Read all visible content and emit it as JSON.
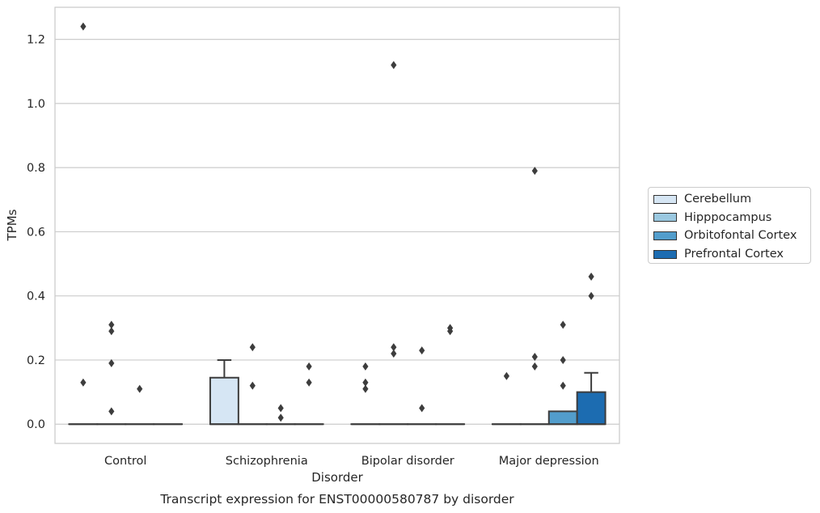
{
  "chart_data": {
    "type": "box",
    "title": "Transcript expression for ENST00000580787 by disorder",
    "xlabel": "Disorder",
    "ylabel": "TPMs",
    "ylim": [
      -0.06,
      1.3
    ],
    "yticks": [
      "0.0",
      "0.2",
      "0.4",
      "0.6",
      "0.8",
      "1.0",
      "1.2"
    ],
    "categories": [
      "Control",
      "Schizophrenia",
      "Bipolar disorder",
      "Major depression"
    ],
    "grid": "horizontal",
    "legend_position": "right",
    "series": [
      {
        "name": "Cerebellum",
        "color": "#d6e6f4",
        "boxes": [
          {
            "q1": 0,
            "median": 0,
            "q3": 0,
            "whisker_low": 0,
            "whisker_high": 0,
            "outliers": [
              1.24,
              0.13
            ]
          },
          {
            "q1": 0,
            "median": 0,
            "q3": 0.145,
            "whisker_low": 0,
            "whisker_high": 0.2,
            "outliers": []
          },
          {
            "q1": 0,
            "median": 0,
            "q3": 0,
            "whisker_low": 0,
            "whisker_high": 0,
            "outliers": [
              0.18,
              0.13,
              0.11
            ]
          },
          {
            "q1": 0,
            "median": 0,
            "q3": 0,
            "whisker_low": 0,
            "whisker_high": 0,
            "outliers": [
              0.15
            ]
          }
        ]
      },
      {
        "name": "Hipppocampus",
        "color": "#9ac8e0",
        "boxes": [
          {
            "q1": 0,
            "median": 0,
            "q3": 0,
            "whisker_low": 0,
            "whisker_high": 0,
            "outliers": [
              0.29,
              0.31,
              0.19,
              0.04
            ]
          },
          {
            "q1": 0,
            "median": 0,
            "q3": 0,
            "whisker_low": 0,
            "whisker_high": 0,
            "outliers": [
              0.24,
              0.12
            ]
          },
          {
            "q1": 0,
            "median": 0,
            "q3": 0,
            "whisker_low": 0,
            "whisker_high": 0,
            "outliers": [
              1.12,
              0.24,
              0.22
            ]
          },
          {
            "q1": 0,
            "median": 0,
            "q3": 0,
            "whisker_low": 0,
            "whisker_high": 0,
            "outliers": [
              0.79,
              0.21,
              0.18
            ]
          }
        ]
      },
      {
        "name": "Orbitofontal Cortex",
        "color": "#529dcc",
        "boxes": [
          {
            "q1": 0,
            "median": 0,
            "q3": 0,
            "whisker_low": 0,
            "whisker_high": 0,
            "outliers": [
              0.11
            ]
          },
          {
            "q1": 0,
            "median": 0,
            "q3": 0,
            "whisker_low": 0,
            "whisker_high": 0,
            "outliers": [
              0.05,
              0.02
            ]
          },
          {
            "q1": 0,
            "median": 0,
            "q3": 0,
            "whisker_low": 0,
            "whisker_high": 0,
            "outliers": [
              0.23,
              0.05
            ]
          },
          {
            "q1": 0,
            "median": 0,
            "q3": 0.04,
            "whisker_low": 0,
            "whisker_high": 0.04,
            "outliers": [
              0.31,
              0.2,
              0.12
            ]
          }
        ]
      },
      {
        "name": "Prefrontal Cortex",
        "color": "#1c6cb1",
        "boxes": [
          {
            "q1": 0,
            "median": 0,
            "q3": 0,
            "whisker_low": 0,
            "whisker_high": 0,
            "outliers": []
          },
          {
            "q1": 0,
            "median": 0,
            "q3": 0,
            "whisker_low": 0,
            "whisker_high": 0,
            "outliers": [
              0.18,
              0.13
            ]
          },
          {
            "q1": 0,
            "median": 0,
            "q3": 0,
            "whisker_low": 0,
            "whisker_high": 0,
            "outliers": [
              0.3,
              0.29
            ]
          },
          {
            "q1": 0,
            "median": 0,
            "q3": 0.1,
            "whisker_low": 0,
            "whisker_high": 0.16,
            "outliers": [
              0.46,
              0.4
            ]
          }
        ]
      }
    ]
  }
}
